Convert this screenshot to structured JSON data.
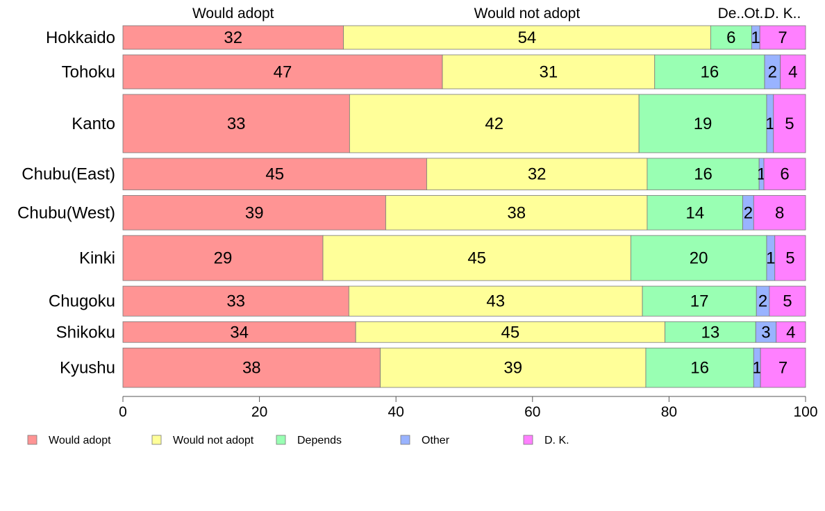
{
  "chart_data": {
    "type": "bar",
    "orientation": "horizontal",
    "stacked": true,
    "percent": true,
    "categories": [
      "Hokkaido",
      "Tohoku",
      "Kanto",
      "Chubu(East)",
      "Chubu(West)",
      "Kinki",
      "Chugoku",
      "Shikoku",
      "Kyushu"
    ],
    "category_weights": [
      1.0,
      1.44,
      2.47,
      1.34,
      1.46,
      1.91,
      1.27,
      0.88,
      1.67
    ],
    "series": [
      {
        "name": "Would adopt",
        "header": "Would adopt",
        "color": "#ff9494",
        "values": [
          32.3,
          46.8,
          33.2,
          44.5,
          38.5,
          29.3,
          33.1,
          34.1,
          37.7
        ]
      },
      {
        "name": "Would not adopt",
        "header": "Would not adopt",
        "color": "#ffff99",
        "values": [
          53.8,
          31.1,
          42.4,
          32.3,
          38.3,
          45.1,
          43.0,
          45.3,
          38.9
        ]
      },
      {
        "name": "Depends",
        "header": "De..",
        "color": "#99ffb3",
        "values": [
          6.0,
          16.1,
          18.7,
          16.4,
          14.0,
          19.9,
          16.7,
          13.3,
          15.8
        ]
      },
      {
        "name": "Other",
        "header": "Ot..",
        "color": "#99b3ff",
        "values": [
          1.2,
          2.3,
          1.0,
          0.7,
          1.6,
          1.2,
          1.9,
          3.0,
          1.0
        ]
      },
      {
        "name": "D. K.",
        "header": "D. K..",
        "color": "#ff80ff",
        "values": [
          6.7,
          3.7,
          4.7,
          6.1,
          7.6,
          4.5,
          5.3,
          4.3,
          6.6
        ]
      }
    ],
    "xlim": [
      0,
      100
    ],
    "xticks": [
      0,
      20,
      40,
      60,
      80,
      100
    ],
    "xlabel": "",
    "ylabel": "",
    "title": "",
    "grid": false,
    "legend_position": "bottom"
  }
}
